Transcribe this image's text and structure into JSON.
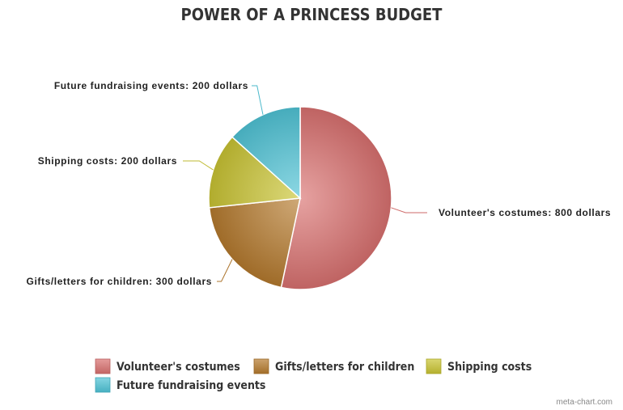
{
  "chart_data": {
    "type": "pie",
    "title": "POWER OF A PRINCESS BUDGET",
    "unit": "dollars",
    "legend_position": "bottom",
    "slices": [
      {
        "name": "Volunteer's costumes",
        "value": 800,
        "label": "Volunteer's costumes: 800 dollars",
        "color": "#D9706F"
      },
      {
        "name": "Gifts/letters for children",
        "value": 300,
        "label": "Gifts/letters for children: 300 dollars",
        "color": "#B57A2E"
      },
      {
        "name": "Shipping costs",
        "value": 200,
        "label": "Shipping costs: 200 dollars",
        "color": "#C9C433"
      },
      {
        "name": "Future fundraising events",
        "value": 200,
        "label": "Future fundraising events: 200 dollars",
        "color": "#4FC3D6"
      }
    ]
  },
  "credit": "meta-chart.com"
}
